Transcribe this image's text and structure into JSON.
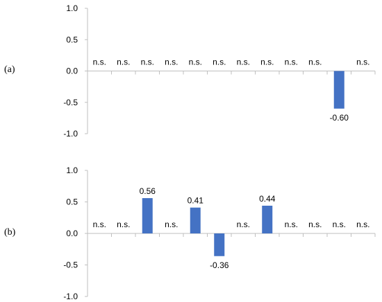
{
  "chart_data": [
    {
      "type": "bar",
      "panel_label": "(a)",
      "categories": [
        "",
        "",
        "",
        "",
        "",
        "",
        "",
        "",
        "",
        "",
        "",
        ""
      ],
      "values": [
        null,
        null,
        null,
        null,
        null,
        null,
        null,
        null,
        null,
        null,
        -0.6,
        null
      ],
      "data_labels": [
        "n.s.",
        "n.s.",
        "n.s.",
        "n.s.",
        "n.s.",
        "n.s.",
        "n.s.",
        "n.s.",
        "n.s.",
        "n.s.",
        "-0.60",
        "n.s."
      ],
      "ylim": [
        -1.0,
        1.0
      ],
      "yticks": [
        "1.0",
        "0.5",
        "0.0",
        "-0.5",
        "-1.0"
      ],
      "xlabel": "",
      "ylabel": "",
      "title": "",
      "grid": false,
      "bar_color": "#4472C4"
    },
    {
      "type": "bar",
      "panel_label": "(b)",
      "categories": [
        "",
        "",
        "",
        "",
        "",
        "",
        "",
        "",
        "",
        "",
        "",
        ""
      ],
      "values": [
        null,
        null,
        0.56,
        null,
        0.41,
        -0.36,
        null,
        0.44,
        null,
        null,
        null,
        null
      ],
      "data_labels": [
        "n.s.",
        "n.s.",
        "0.56",
        "n.s.",
        "0.41",
        "-0.36",
        "n.s.",
        "0.44",
        "n.s.",
        "n.s.",
        "n.s.",
        "n.s."
      ],
      "ylim": [
        -1.0,
        1.0
      ],
      "yticks": [
        "1.0",
        "0.5",
        "0.0",
        "-0.5",
        "-1.0"
      ],
      "xlabel": "",
      "ylabel": "",
      "title": "",
      "grid": false,
      "bar_color": "#4472C4"
    }
  ]
}
